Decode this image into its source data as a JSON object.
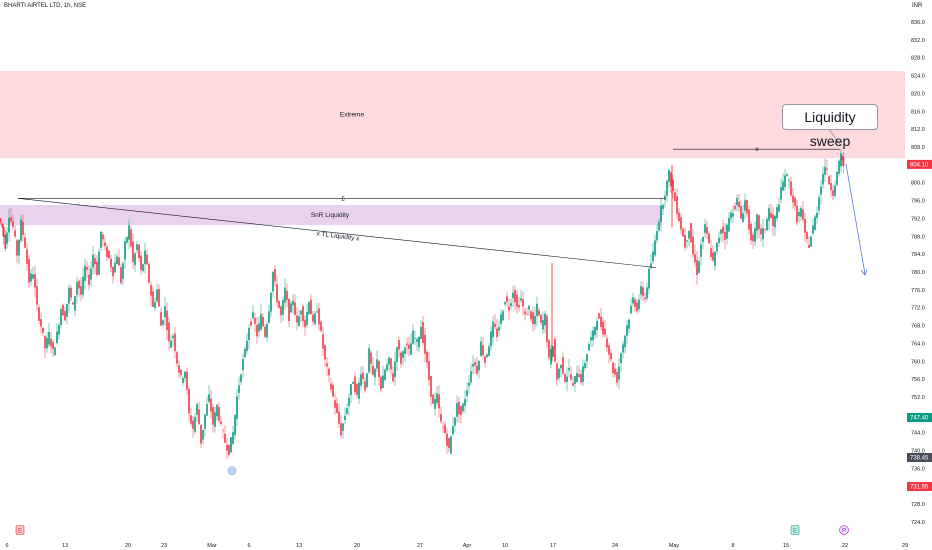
{
  "header": {
    "title": "BHARTI AIRTEL LTD, 1h, NSE",
    "unit": "INR"
  },
  "chart_data": {
    "type": "candlestick",
    "y_axis": {
      "range": [
        722,
        837
      ],
      "ticks": [
        836,
        832,
        828,
        824,
        820,
        816,
        812,
        808,
        800,
        796,
        792,
        788,
        784,
        780,
        776,
        772,
        768,
        764,
        760,
        756,
        752,
        744,
        740,
        736,
        728,
        724
      ]
    },
    "x_axis": {
      "labels": [
        "6",
        "13",
        "20",
        "23",
        "Mar",
        "6",
        "13",
        "20",
        "27",
        "Apr",
        "10",
        "17",
        "24",
        "May",
        "8",
        "15",
        "22",
        "29"
      ]
    },
    "price_tags": [
      {
        "label": "804.10",
        "value": 804.1,
        "color": "#f23645"
      },
      {
        "label": "747.40",
        "value": 747.4,
        "color": "#089981"
      },
      {
        "label": "738.45",
        "value": 738.45,
        "color": "#4a4e59"
      },
      {
        "label": "731.95",
        "value": 731.95,
        "color": "#f23645"
      }
    ],
    "zones": [
      {
        "label": "Extreme",
        "from": 805.5,
        "to": 825
      },
      {
        "label": "SnR Liquidity",
        "from": 790.5,
        "to": 795
      }
    ],
    "annotations": {
      "callout": "Liquidity sweep",
      "sweep_marker": "x",
      "level_marker": "£",
      "trendline_label": "x TL Liquidity x"
    },
    "event_markers": [
      "E",
      "E",
      "P"
    ],
    "candles_source": "approximate path of hourly closes",
    "path": [
      [
        0,
        792
      ],
      [
        3,
        790
      ],
      [
        6,
        786
      ],
      [
        10,
        793
      ],
      [
        14,
        790
      ],
      [
        18,
        784
      ],
      [
        22,
        791
      ],
      [
        26,
        786
      ],
      [
        30,
        778
      ],
      [
        34,
        780
      ],
      [
        38,
        772
      ],
      [
        42,
        768
      ],
      [
        46,
        763
      ],
      [
        50,
        766
      ],
      [
        54,
        762
      ],
      [
        58,
        766
      ],
      [
        62,
        772
      ],
      [
        66,
        770
      ],
      [
        70,
        776
      ],
      [
        74,
        772
      ],
      [
        78,
        778
      ],
      [
        82,
        775
      ],
      [
        86,
        781
      ],
      [
        90,
        778
      ],
      [
        94,
        784
      ],
      [
        98,
        780
      ],
      [
        102,
        789
      ],
      [
        106,
        785
      ],
      [
        110,
        783
      ],
      [
        114,
        780
      ],
      [
        118,
        784
      ],
      [
        122,
        778
      ],
      [
        126,
        786
      ],
      [
        130,
        790
      ],
      [
        134,
        782
      ],
      [
        138,
        786
      ],
      [
        142,
        780
      ],
      [
        146,
        784
      ],
      [
        150,
        778
      ],
      [
        154,
        772
      ],
      [
        158,
        776
      ],
      [
        162,
        768
      ],
      [
        166,
        772
      ],
      [
        170,
        764
      ],
      [
        174,
        766
      ],
      [
        178,
        760
      ],
      [
        182,
        756
      ],
      [
        186,
        758
      ],
      [
        190,
        748
      ],
      [
        194,
        745
      ],
      [
        198,
        750
      ],
      [
        202,
        742
      ],
      [
        206,
        748
      ],
      [
        210,
        752
      ],
      [
        214,
        746
      ],
      [
        218,
        750
      ],
      [
        222,
        745
      ],
      [
        226,
        742
      ],
      [
        230,
        740
      ],
      [
        234,
        744
      ],
      [
        238,
        752
      ],
      [
        242,
        758
      ],
      [
        246,
        762
      ],
      [
        250,
        768
      ],
      [
        254,
        770
      ],
      [
        258,
        766
      ],
      [
        262,
        770
      ],
      [
        266,
        766
      ],
      [
        270,
        772
      ],
      [
        274,
        780
      ],
      [
        278,
        774
      ],
      [
        282,
        770
      ],
      [
        286,
        776
      ],
      [
        290,
        770
      ],
      [
        294,
        774
      ],
      [
        298,
        768
      ],
      [
        302,
        772
      ],
      [
        306,
        768
      ],
      [
        310,
        774
      ],
      [
        314,
        768
      ],
      [
        318,
        772
      ],
      [
        322,
        766
      ],
      [
        326,
        760
      ],
      [
        330,
        756
      ],
      [
        334,
        752
      ],
      [
        338,
        748
      ],
      [
        342,
        744
      ],
      [
        346,
        748
      ],
      [
        350,
        752
      ],
      [
        354,
        756
      ],
      [
        358,
        752
      ],
      [
        362,
        758
      ],
      [
        366,
        754
      ],
      [
        370,
        762
      ],
      [
        374,
        756
      ],
      [
        378,
        760
      ],
      [
        382,
        754
      ],
      [
        386,
        758
      ],
      [
        390,
        760
      ],
      [
        394,
        756
      ],
      [
        398,
        764
      ],
      [
        402,
        760
      ],
      [
        406,
        764
      ],
      [
        410,
        762
      ],
      [
        414,
        766
      ],
      [
        418,
        764
      ],
      [
        422,
        768
      ],
      [
        426,
        762
      ],
      [
        430,
        756
      ],
      [
        434,
        750
      ],
      [
        438,
        752
      ],
      [
        442,
        746
      ],
      [
        446,
        744
      ],
      [
        450,
        740
      ],
      [
        454,
        746
      ],
      [
        458,
        750
      ],
      [
        462,
        748
      ],
      [
        466,
        752
      ],
      [
        470,
        756
      ],
      [
        474,
        760
      ],
      [
        478,
        758
      ],
      [
        482,
        764
      ],
      [
        486,
        760
      ],
      [
        490,
        764
      ],
      [
        494,
        768
      ],
      [
        498,
        766
      ],
      [
        502,
        770
      ],
      [
        506,
        774
      ],
      [
        510,
        772
      ],
      [
        514,
        776
      ],
      [
        518,
        772
      ],
      [
        522,
        774
      ],
      [
        526,
        770
      ],
      [
        530,
        772
      ],
      [
        534,
        768
      ],
      [
        538,
        772
      ],
      [
        542,
        768
      ],
      [
        546,
        770
      ],
      [
        550,
        760
      ],
      [
        554,
        764
      ],
      [
        558,
        756
      ],
      [
        562,
        760
      ],
      [
        566,
        756
      ],
      [
        570,
        758
      ],
      [
        574,
        754
      ],
      [
        578,
        758
      ],
      [
        582,
        756
      ],
      [
        586,
        760
      ],
      [
        590,
        764
      ],
      [
        594,
        766
      ],
      [
        598,
        770
      ],
      [
        602,
        768
      ],
      [
        606,
        766
      ],
      [
        610,
        762
      ],
      [
        614,
        758
      ],
      [
        618,
        756
      ],
      [
        622,
        762
      ],
      [
        626,
        766
      ],
      [
        630,
        770
      ],
      [
        634,
        774
      ],
      [
        638,
        772
      ],
      [
        642,
        776
      ],
      [
        646,
        774
      ],
      [
        650,
        780
      ],
      [
        654,
        784
      ],
      [
        658,
        790
      ],
      [
        662,
        794
      ],
      [
        666,
        798
      ],
      [
        670,
        802
      ],
      [
        674,
        798
      ],
      [
        678,
        794
      ],
      [
        682,
        790
      ],
      [
        686,
        786
      ],
      [
        690,
        790
      ],
      [
        694,
        784
      ],
      [
        698,
        780
      ],
      [
        702,
        786
      ],
      [
        706,
        790
      ],
      [
        710,
        786
      ],
      [
        714,
        782
      ],
      [
        718,
        786
      ],
      [
        722,
        790
      ],
      [
        726,
        788
      ],
      [
        730,
        792
      ],
      [
        734,
        794
      ],
      [
        738,
        796
      ],
      [
        742,
        792
      ],
      [
        746,
        796
      ],
      [
        750,
        790
      ],
      [
        754,
        786
      ],
      [
        758,
        792
      ],
      [
        762,
        788
      ],
      [
        766,
        790
      ],
      [
        770,
        794
      ],
      [
        774,
        790
      ],
      [
        778,
        794
      ],
      [
        782,
        798
      ],
      [
        786,
        802
      ],
      [
        790,
        800
      ],
      [
        794,
        796
      ],
      [
        798,
        792
      ],
      [
        802,
        794
      ],
      [
        806,
        788
      ],
      [
        810,
        786
      ],
      [
        814,
        790
      ],
      [
        818,
        794
      ],
      [
        822,
        800
      ],
      [
        826,
        804
      ],
      [
        830,
        800
      ],
      [
        834,
        798
      ],
      [
        838,
        802
      ],
      [
        842,
        806
      ],
      [
        844,
        804
      ]
    ]
  }
}
